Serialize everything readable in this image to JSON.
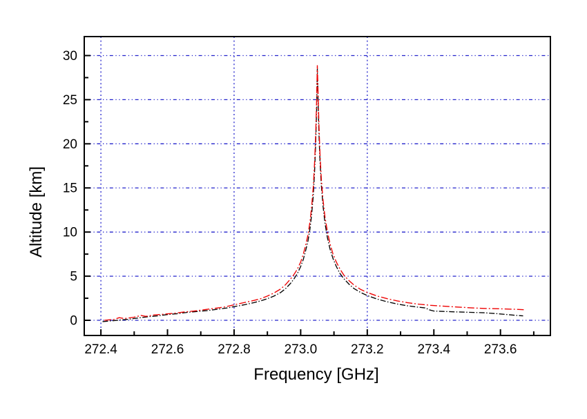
{
  "chart_data": {
    "type": "line",
    "title": "",
    "xlabel": "Frequency [GHz]",
    "ylabel": "Altitude [km]",
    "xlim": [
      272.35,
      273.75
    ],
    "ylim": [
      -1.72,
      32.15
    ],
    "x_major_ticks": [
      272.4,
      272.6,
      272.8,
      273.0,
      273.2,
      273.4,
      273.6
    ],
    "x_tick_labels": [
      "272.4",
      "272.6",
      "272.8",
      "273.0",
      "273.2",
      "273.4",
      "273.6"
    ],
    "x_minor_ticks": [
      272.5,
      272.7,
      272.9,
      273.1,
      273.3,
      273.5,
      273.7
    ],
    "y_major_ticks": [
      0,
      5,
      10,
      15,
      20,
      25,
      30
    ],
    "y_tick_labels": [
      "0",
      "5",
      "10",
      "15",
      "20",
      "25",
      "30"
    ],
    "y_minor_ticks": [
      2.5,
      7.5,
      12.5,
      17.5,
      22.5,
      27.5
    ],
    "x_gridlines": [
      272.4,
      272.8,
      273.2
    ],
    "y_gridlines": [
      0,
      5,
      10,
      15,
      20,
      25,
      30
    ],
    "grid_on": true,
    "grid_color": "#2222cc",
    "axis_color": "#000000",
    "background_color": "#ffffff",
    "legend": null,
    "peak": {
      "frequency_ghz": 273.05,
      "altitude_km": 28.9
    },
    "series": [
      {
        "name": "black",
        "color": "#000000",
        "dash": "8 2.5 1.5 2.5",
        "points": [
          [
            272.405,
            -0.15
          ],
          [
            272.42,
            -0.1
          ],
          [
            272.45,
            0.0
          ],
          [
            272.48,
            0.1
          ],
          [
            272.51,
            0.25
          ],
          [
            272.54,
            0.4
          ],
          [
            272.57,
            0.5
          ],
          [
            272.6,
            0.65
          ],
          [
            272.63,
            0.75
          ],
          [
            272.66,
            0.9
          ],
          [
            272.69,
            1.0
          ],
          [
            272.72,
            1.1
          ],
          [
            272.75,
            1.25
          ],
          [
            272.78,
            1.4
          ],
          [
            272.8,
            1.55
          ],
          [
            272.83,
            1.75
          ],
          [
            272.86,
            2.0
          ],
          [
            272.88,
            2.2
          ],
          [
            272.9,
            2.45
          ],
          [
            272.92,
            2.75
          ],
          [
            272.94,
            3.15
          ],
          [
            272.955,
            3.6
          ],
          [
            272.97,
            4.2
          ],
          [
            272.98,
            4.7
          ],
          [
            272.99,
            5.3
          ],
          [
            273.0,
            6.1
          ],
          [
            273.008,
            6.9
          ],
          [
            273.015,
            7.9
          ],
          [
            273.022,
            9.0
          ],
          [
            273.028,
            10.4
          ],
          [
            273.033,
            12.0
          ],
          [
            273.038,
            14.2
          ],
          [
            273.042,
            17.0
          ],
          [
            273.045,
            20.0
          ],
          [
            273.048,
            24.0
          ],
          [
            273.05,
            28.5
          ],
          [
            273.0525,
            24.5
          ],
          [
            273.055,
            21.0
          ],
          [
            273.058,
            18.0
          ],
          [
            273.062,
            15.3
          ],
          [
            273.067,
            13.0
          ],
          [
            273.073,
            11.0
          ],
          [
            273.08,
            9.4
          ],
          [
            273.088,
            8.1
          ],
          [
            273.097,
            7.0
          ],
          [
            273.107,
            6.1
          ],
          [
            273.118,
            5.3
          ],
          [
            273.13,
            4.7
          ],
          [
            273.145,
            4.1
          ],
          [
            273.16,
            3.6
          ],
          [
            273.18,
            3.15
          ],
          [
            273.2,
            2.8
          ],
          [
            273.23,
            2.4
          ],
          [
            273.26,
            2.1
          ],
          [
            273.29,
            1.85
          ],
          [
            273.32,
            1.65
          ],
          [
            273.35,
            1.5
          ],
          [
            273.375,
            1.4
          ],
          [
            273.385,
            1.2
          ],
          [
            273.4,
            1.05
          ],
          [
            273.43,
            1.0
          ],
          [
            273.47,
            0.95
          ],
          [
            273.51,
            0.9
          ],
          [
            273.55,
            0.85
          ],
          [
            273.59,
            0.75
          ],
          [
            273.62,
            0.65
          ],
          [
            273.65,
            0.55
          ],
          [
            273.668,
            0.5
          ]
        ]
      },
      {
        "name": "red",
        "color": "#ee0000",
        "dash": "10 3 2 3",
        "points": [
          [
            272.41,
            0.0
          ],
          [
            272.44,
            0.1
          ],
          [
            272.455,
            0.3
          ],
          [
            272.47,
            0.2
          ],
          [
            272.5,
            0.35
          ],
          [
            272.52,
            0.55
          ],
          [
            272.535,
            0.45
          ],
          [
            272.56,
            0.6
          ],
          [
            272.59,
            0.7
          ],
          [
            272.62,
            0.8
          ],
          [
            272.65,
            0.95
          ],
          [
            272.68,
            1.05
          ],
          [
            272.71,
            1.2
          ],
          [
            272.74,
            1.35
          ],
          [
            272.77,
            1.5
          ],
          [
            272.8,
            1.75
          ],
          [
            272.83,
            2.0
          ],
          [
            272.86,
            2.25
          ],
          [
            272.88,
            2.45
          ],
          [
            272.9,
            2.75
          ],
          [
            272.92,
            3.1
          ],
          [
            272.94,
            3.55
          ],
          [
            272.955,
            4.05
          ],
          [
            272.97,
            4.7
          ],
          [
            272.98,
            5.2
          ],
          [
            272.99,
            5.8
          ],
          [
            273.0,
            6.6
          ],
          [
            273.008,
            7.5
          ],
          [
            273.015,
            8.5
          ],
          [
            273.022,
            9.7
          ],
          [
            273.028,
            11.2
          ],
          [
            273.033,
            12.9
          ],
          [
            273.038,
            15.2
          ],
          [
            273.042,
            18.0
          ],
          [
            273.045,
            21.0
          ],
          [
            273.048,
            25.0
          ],
          [
            273.05,
            28.9
          ],
          [
            273.0525,
            25.5
          ],
          [
            273.055,
            22.0
          ],
          [
            273.058,
            18.8
          ],
          [
            273.062,
            16.0
          ],
          [
            273.067,
            13.7
          ],
          [
            273.073,
            11.7
          ],
          [
            273.08,
            10.1
          ],
          [
            273.088,
            8.7
          ],
          [
            273.097,
            7.5
          ],
          [
            273.107,
            6.6
          ],
          [
            273.118,
            5.8
          ],
          [
            273.13,
            5.1
          ],
          [
            273.145,
            4.5
          ],
          [
            273.16,
            4.0
          ],
          [
            273.18,
            3.5
          ],
          [
            273.2,
            3.15
          ],
          [
            273.23,
            2.75
          ],
          [
            273.26,
            2.45
          ],
          [
            273.29,
            2.2
          ],
          [
            273.32,
            2.0
          ],
          [
            273.35,
            1.85
          ],
          [
            273.39,
            1.7
          ],
          [
            273.43,
            1.6
          ],
          [
            273.47,
            1.5
          ],
          [
            273.51,
            1.42
          ],
          [
            273.55,
            1.35
          ],
          [
            273.6,
            1.3
          ],
          [
            273.64,
            1.25
          ],
          [
            273.67,
            1.2
          ]
        ]
      }
    ]
  }
}
